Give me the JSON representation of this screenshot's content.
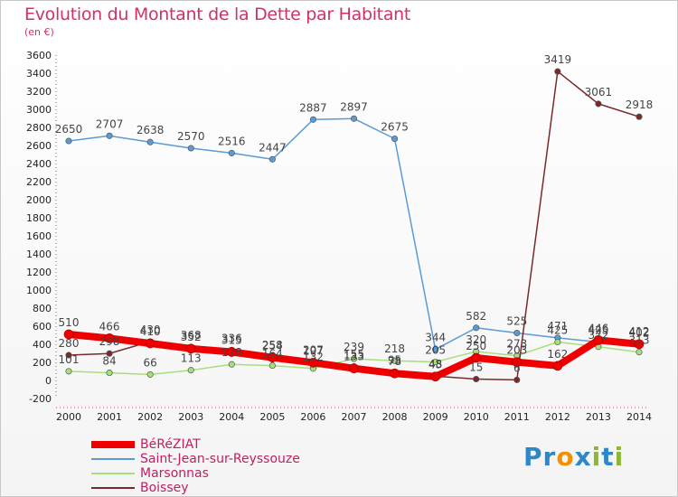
{
  "title": "Evolution du Montant de la Dette par Habitant",
  "subtitle": "(en €)",
  "brand": {
    "letters": [
      "P",
      "r",
      "o",
      "x",
      "i",
      "t",
      "i"
    ],
    "colors": [
      "#2e88c8",
      "#2e88c8",
      "#f29100",
      "#2e88c8",
      "#8ab833",
      "#2e88c8",
      "#8ab833"
    ]
  },
  "chart_data": {
    "type": "line",
    "x": [
      "2000",
      "2001",
      "2002",
      "2003",
      "2004",
      "2005",
      "2006",
      "2007",
      "2008",
      "2009",
      "2010",
      "2011",
      "2012",
      "2013",
      "2014"
    ],
    "ylim": [
      -200,
      3600
    ],
    "yticks": [
      "-200",
      "0",
      "200",
      "400",
      "600",
      "800",
      "1000",
      "1200",
      "1400",
      "1600",
      "1800",
      "2000",
      "2200",
      "2400",
      "2600",
      "2800",
      "3000",
      "3200",
      "3400",
      "3600"
    ],
    "grid": false,
    "legend_position": "bottom-left",
    "series": [
      {
        "name": "BéRéZIAT",
        "color": "#ee0000",
        "width": 8,
        "values": [
          510,
          466,
          410,
          352,
          315,
          254,
          197,
          133,
          78,
          43,
          250,
          203,
          162,
          446,
          402
        ],
        "labels": [
          "510",
          "466",
          "410",
          "352",
          "315",
          "254",
          "197",
          "133",
          "78",
          "43",
          "250",
          "203",
          "162",
          "446",
          "402"
        ]
      },
      {
        "name": "Saint-Jean-sur-Reyssouze",
        "color": "#5b9bd5",
        "width": 1.5,
        "values": [
          2650,
          2707,
          2638,
          2570,
          2516,
          2447,
          2887,
          2897,
          2675,
          344,
          582,
          525,
          471,
          425,
          412
        ],
        "labels": [
          "2650",
          "2707",
          "2638",
          "2570",
          "2516",
          "2447",
          "2887",
          "2897",
          "2675",
          "344",
          "582",
          "525",
          "471",
          "425",
          "412"
        ]
      },
      {
        "name": "Marsonnas",
        "color": "#a6e07a",
        "width": 1.5,
        "values": [
          101,
          84,
          66,
          113,
          178,
          164,
          132,
          239,
          218,
          205,
          320,
          273,
          425,
          372,
          313
        ],
        "labels": [
          "101",
          "84",
          "66",
          "113",
          "178",
          "164",
          "132",
          "239",
          "218",
          "205",
          "320",
          "273",
          "425",
          "372",
          "313"
        ]
      },
      {
        "name": "Boissey",
        "color": "#7a2a2a",
        "width": 1.5,
        "values": [
          280,
          298,
          430,
          368,
          336,
          258,
          207,
          155,
          95,
          48,
          15,
          6,
          3419,
          3061,
          2918
        ],
        "labels": [
          "280",
          "298",
          "430",
          "368",
          "336",
          "258",
          "207",
          "155",
          "95",
          "48",
          "15",
          "6",
          "3419",
          "3061",
          "2918"
        ]
      }
    ]
  }
}
